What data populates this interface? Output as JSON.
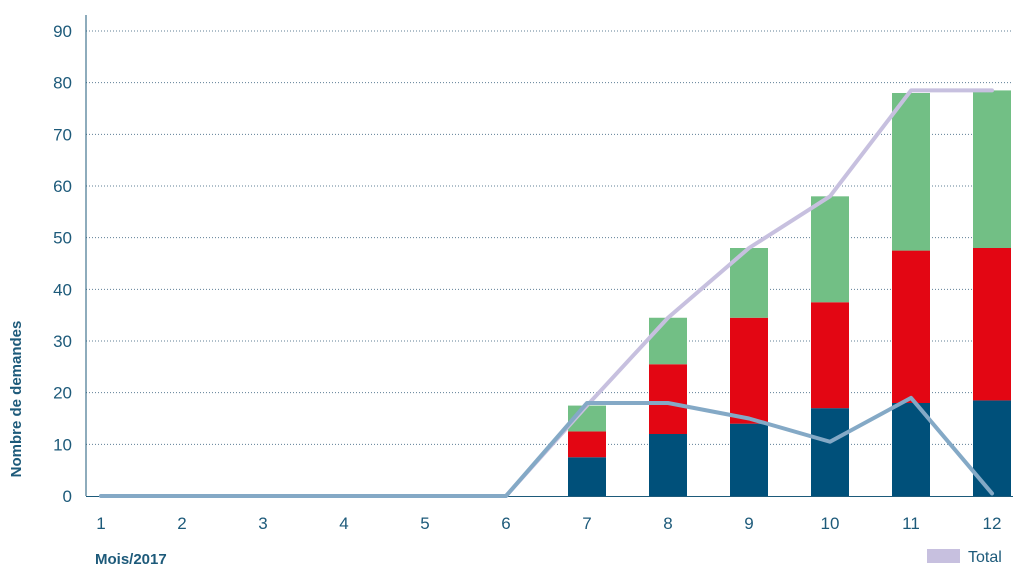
{
  "chart_data": {
    "type": "bar",
    "stacked": true,
    "categories": [
      "1",
      "2",
      "3",
      "4",
      "5",
      "6",
      "7",
      "8",
      "9",
      "10",
      "11",
      "12"
    ],
    "series": [
      {
        "color": "#00507a",
        "values": [
          0,
          0,
          0,
          0,
          0,
          0,
          7.5,
          12,
          14,
          17,
          18,
          18.5
        ]
      },
      {
        "color": "#e30613",
        "values": [
          0,
          0,
          0,
          0,
          0,
          0,
          5,
          13.5,
          20.5,
          20.5,
          29.5,
          29.5
        ]
      },
      {
        "color": "#72bf85",
        "values": [
          0,
          0,
          0,
          0,
          0,
          0,
          5,
          9,
          13.5,
          20.5,
          30.5,
          30.5
        ]
      }
    ],
    "lines": [
      {
        "name": "Total",
        "color": "#c7c0df",
        "values": [
          0,
          0,
          0,
          0,
          0,
          0,
          17.5,
          34.5,
          48,
          58,
          78.5,
          78.5
        ]
      },
      {
        "color": "#84a9c6",
        "values": [
          0,
          0,
          0,
          0,
          0,
          0,
          18,
          18,
          15,
          10.5,
          19,
          0.5
        ]
      }
    ],
    "xlabel": "Mois/2017",
    "ylabel": "Nombre de demandes",
    "ylim": [
      0,
      90
    ],
    "yticks": [
      0,
      10,
      20,
      30,
      40,
      50,
      60,
      70,
      80,
      90
    ],
    "grid": true,
    "legend": {
      "position": "bottom-right",
      "entries": [
        {
          "label": "Total",
          "color": "#c7c0df"
        }
      ]
    }
  }
}
